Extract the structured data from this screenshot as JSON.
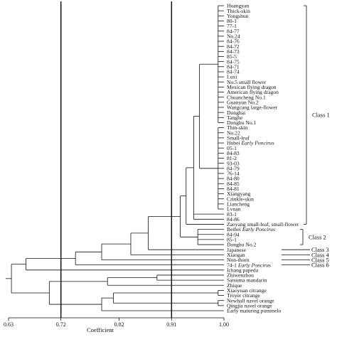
{
  "figure": {
    "x_axis_label": "Coefficient",
    "ticks": [
      "0.63",
      "0.72",
      "0.82",
      "0.91",
      "1.00"
    ],
    "reference_lines": [
      "0.72",
      "0.91"
    ],
    "leaves": [
      {
        "text": "Huangyan"
      },
      {
        "text": "Thick-skin"
      },
      {
        "text": "Yongshun"
      },
      {
        "text": "80-1"
      },
      {
        "text": "77-1"
      },
      {
        "text": "84-77"
      },
      {
        "text": "No.24"
      },
      {
        "text": "84-76"
      },
      {
        "text": "84-72"
      },
      {
        "text": "84-73"
      },
      {
        "text": "85-5"
      },
      {
        "text": "84-75"
      },
      {
        "text": "84-71"
      },
      {
        "text": "84-74"
      },
      {
        "text": "Luxi"
      },
      {
        "text": "No.5 small flower"
      },
      {
        "text": "Mexican flying dragon"
      },
      {
        "text": "American flying dragon"
      },
      {
        "text": "Chuancheng No.1"
      },
      {
        "text": "Guanyun No.2"
      },
      {
        "text": "Wangcang large-flower"
      },
      {
        "text": "Donghai"
      },
      {
        "text": "Tanghe"
      },
      {
        "text": "Donghu No.1"
      },
      {
        "text": "Thin-skin"
      },
      {
        "text": "No.22"
      },
      {
        "text": "Small-leaf"
      },
      {
        "text": "Hubei ",
        "italic": "Early Poncirus"
      },
      {
        "text": "05-1"
      },
      {
        "text": "84-83"
      },
      {
        "text": "81-2"
      },
      {
        "text": "93-03"
      },
      {
        "text": "84-79"
      },
      {
        "text": "76-14"
      },
      {
        "text": "84-80"
      },
      {
        "text": "84-85"
      },
      {
        "text": "84-81"
      },
      {
        "text": "Xiangyang"
      },
      {
        "text": "Crinkle-skin"
      },
      {
        "text": "Liancheng"
      },
      {
        "text": "Lvnan"
      },
      {
        "text": "83-1"
      },
      {
        "text": "84-86"
      },
      {
        "text": "Zaoyang small-leaf, small-flower"
      },
      {
        "text": "Beibei ",
        "italic": "Early Poncirus"
      },
      {
        "text": "84-94"
      },
      {
        "text": "85-1"
      },
      {
        "text": "Donghu No.2"
      },
      {
        "text": "Japanese"
      },
      {
        "text": "Xiaogan"
      },
      {
        "text": "Non-thorn"
      },
      {
        "text": "74-1 ",
        "italic": "Early Poncirus"
      },
      {
        "text": "Ichang papeda"
      },
      {
        "text": "Zhiwenzhou"
      },
      {
        "text": "Satsuma mandarin"
      },
      {
        "text": "Zhique"
      },
      {
        "text": "Xiaoyuan citrange"
      },
      {
        "text": "Troyer citrange"
      },
      {
        "text": "Newhall navel orange"
      },
      {
        "text": "Qingjia navel orange"
      },
      {
        "text": "Early maturing pummelo"
      }
    ],
    "classes": [
      {
        "label": "Class 1",
        "first": 0,
        "last": 43
      },
      {
        "label": "Class 2",
        "first": 44,
        "last": 47
      },
      {
        "label": "Class 3",
        "first": 48,
        "last": 48
      },
      {
        "label": "Class 4",
        "first": 49,
        "last": 49
      },
      {
        "label": "Class 5",
        "first": 50,
        "last": 50
      },
      {
        "label": "Class 6",
        "first": 51,
        "last": 51
      }
    ]
  }
}
